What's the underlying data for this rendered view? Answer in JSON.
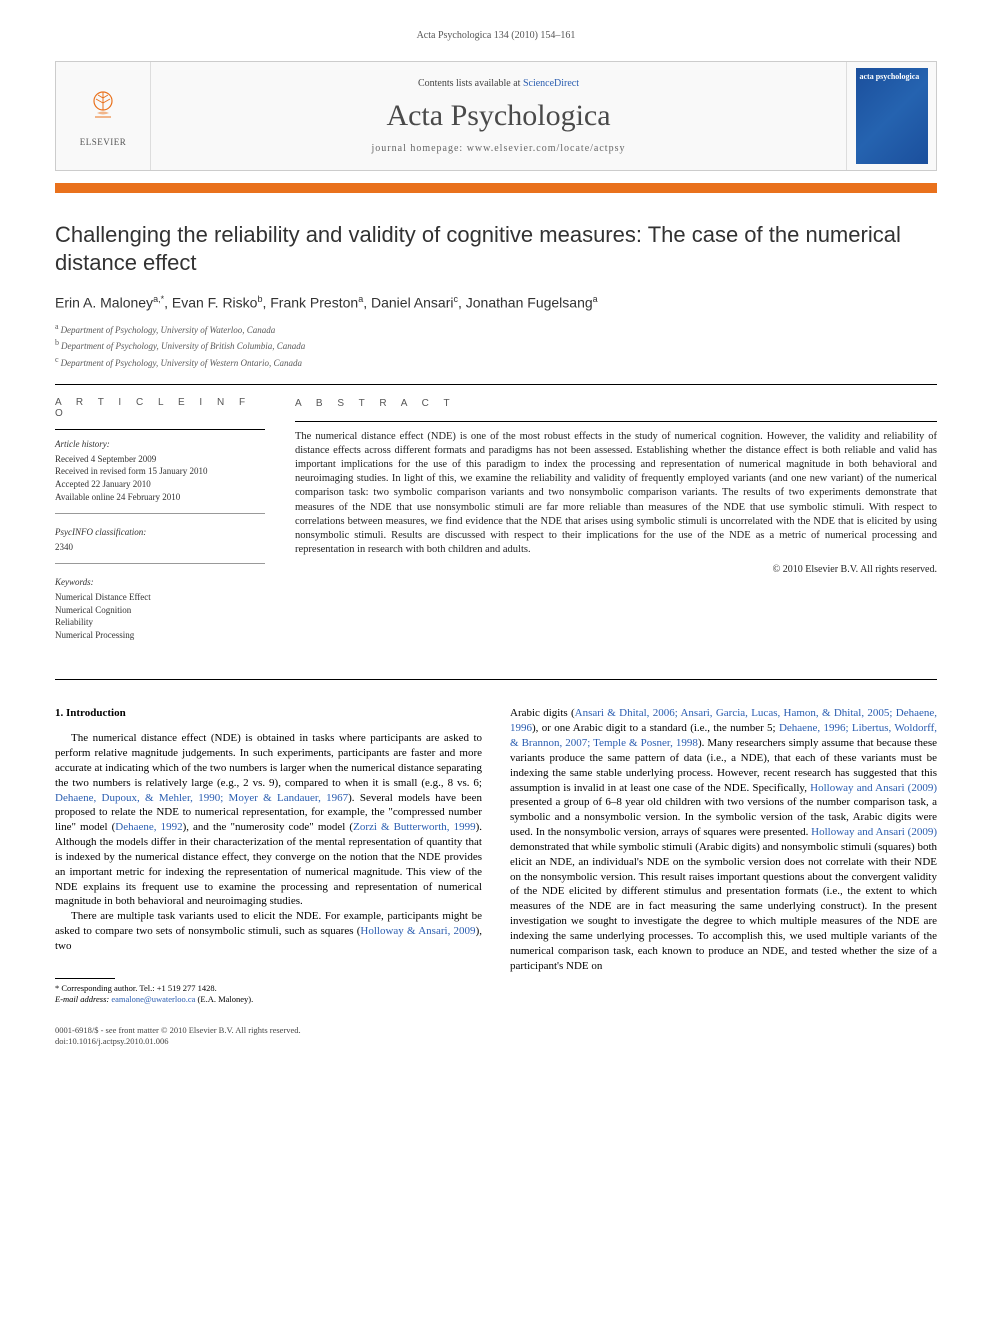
{
  "running_header": "Acta Psychologica 134 (2010) 154–161",
  "banner": {
    "publisher": "ELSEVIER",
    "contents_prefix": "Contents lists available at ",
    "contents_link": "ScienceDirect",
    "journal_title": "Acta Psychologica",
    "homepage_label": "journal homepage: www.elsevier.com/locate/actpsy",
    "cover_title": "acta psychologica"
  },
  "article": {
    "title": "Challenging the reliability and validity of cognitive measures: The case of the numerical distance effect",
    "authors_html": "Erin A. Maloney",
    "authors": [
      {
        "name": "Erin A. Maloney",
        "sup": "a,*"
      },
      {
        "name": "Evan F. Risko",
        "sup": "b"
      },
      {
        "name": "Frank Preston",
        "sup": "a"
      },
      {
        "name": "Daniel Ansari",
        "sup": "c"
      },
      {
        "name": "Jonathan Fugelsang",
        "sup": "a"
      }
    ],
    "affiliations": [
      {
        "sup": "a",
        "text": "Department of Psychology, University of Waterloo, Canada"
      },
      {
        "sup": "b",
        "text": "Department of Psychology, University of British Columbia, Canada"
      },
      {
        "sup": "c",
        "text": "Department of Psychology, University of Western Ontario, Canada"
      }
    ]
  },
  "info": {
    "heading": "A R T I C L E  I N F O",
    "history_label": "Article history:",
    "history": [
      "Received 4 September 2009",
      "Received in revised form 15 January 2010",
      "Accepted 22 January 2010",
      "Available online 24 February 2010"
    ],
    "psycinfo_label": "PsycINFO classification:",
    "psycinfo": "2340",
    "keywords_label": "Keywords:",
    "keywords": [
      "Numerical Distance Effect",
      "Numerical Cognition",
      "Reliability",
      "Numerical Processing"
    ]
  },
  "abstract": {
    "heading": "A B S T R A C T",
    "text": "The numerical distance effect (NDE) is one of the most robust effects in the study of numerical cognition. However, the validity and reliability of distance effects across different formats and paradigms has not been assessed. Establishing whether the distance effect is both reliable and valid has important implications for the use of this paradigm to index the processing and representation of numerical magnitude in both behavioral and neuroimaging studies. In light of this, we examine the reliability and validity of frequently employed variants (and one new variant) of the numerical comparison task: two symbolic comparison variants and two nonsymbolic comparison variants. The results of two experiments demonstrate that measures of the NDE that use nonsymbolic stimuli are far more reliable than measures of the NDE that use symbolic stimuli. With respect to correlations between measures, we find evidence that the NDE that arises using symbolic stimuli is uncorrelated with the NDE that is elicited by using nonsymbolic stimuli. Results are discussed with respect to their implications for the use of the NDE as a metric of numerical processing and representation in research with both children and adults.",
    "copyright": "© 2010 Elsevier B.V. All rights reserved."
  },
  "section1": {
    "heading": "1. Introduction",
    "col_left_p1": "The numerical distance effect (NDE) is obtained in tasks where participants are asked to perform relative magnitude judgements. In such experiments, participants are faster and more accurate at indicating which of the two numbers is larger when the numerical distance separating the two numbers is relatively large (e.g., 2 vs. 9), compared to when it is small (e.g., 8 vs. 6; ",
    "ref1": "Dehaene, Dupoux, & Mehler, 1990; Moyer & Landauer, 1967",
    "col_left_p1b": "). Several models have been proposed to relate the NDE to numerical representation, for example, the \"compressed number line\" model (",
    "ref2": "Dehaene, 1992",
    "col_left_p1c": "), and the \"numerosity code\" model (",
    "ref3": "Zorzi & Butterworth, 1999",
    "col_left_p1d": "). Although the models differ in their characterization of the mental representation of quantity that is indexed by the numerical distance effect, they converge on the notion that the NDE provides an important metric for indexing the representation of numerical magnitude. This view of the NDE explains its frequent use to examine the processing and representation of numerical magnitude in both behavioral and neuroimaging studies.",
    "col_left_p2": "There are multiple task variants used to elicit the NDE. For example, participants might be asked to compare two sets of nonsymbolic stimuli, such as squares (",
    "ref4": "Holloway & Ansari, 2009",
    "col_left_p2b": "), two",
    "col_right_p1a": "Arabic digits (",
    "ref5": "Ansari & Dhital, 2006; Ansari, Garcia, Lucas, Hamon, & Dhital, 2005; Dehaene, 1996",
    "col_right_p1b": "), or one Arabic digit to a standard (i.e., the number 5; ",
    "ref6": "Dehaene, 1996; Libertus, Woldorff, & Brannon, 2007; Temple & Posner, 1998",
    "col_right_p1c": "). Many researchers simply assume that because these variants produce the same pattern of data (i.e., a NDE), that each of these variants must be indexing the same stable underlying process. However, recent research has suggested that this assumption is invalid in at least one case of the NDE. Specifically, ",
    "ref7": "Holloway and Ansari (2009)",
    "col_right_p1d": " presented a group of 6–8 year old children with two versions of the number comparison task, a symbolic and a nonsymbolic version. In the symbolic version of the task, Arabic digits were used. In the nonsymbolic version, arrays of squares were presented. ",
    "ref8": "Holloway and Ansari (2009)",
    "col_right_p1e": " demonstrated that while symbolic stimuli (Arabic digits) and nonsymbolic stimuli (squares) both elicit an NDE, an individual's NDE on the symbolic version does not correlate with their NDE on the nonsymbolic version. This result raises important questions about the convergent validity of the NDE elicited by different stimulus and presentation formats (i.e., the extent to which measures of the NDE are in fact measuring the same underlying construct). In the present investigation we sought to investigate the degree to which multiple measures of the NDE are indexing the same underlying processes. To accomplish this, we used multiple variants of the numerical comparison task, each known to produce an NDE, and tested whether the size of a participant's NDE on"
  },
  "footnote": {
    "corr_label": "* Corresponding author. Tel.: +1 519 277 1428.",
    "email_label": "E-mail address:",
    "email": "eamalone@uwaterloo.ca",
    "email_suffix": "(E.A. Maloney)."
  },
  "footer": {
    "line1": "0001-6918/$ - see front matter © 2010 Elsevier B.V. All rights reserved.",
    "line2": "doi:10.1016/j.actpsy.2010.01.006"
  },
  "colors": {
    "orange": "#e9711c",
    "link": "#2a5db0",
    "cover_bg": "#1b4f9c"
  }
}
